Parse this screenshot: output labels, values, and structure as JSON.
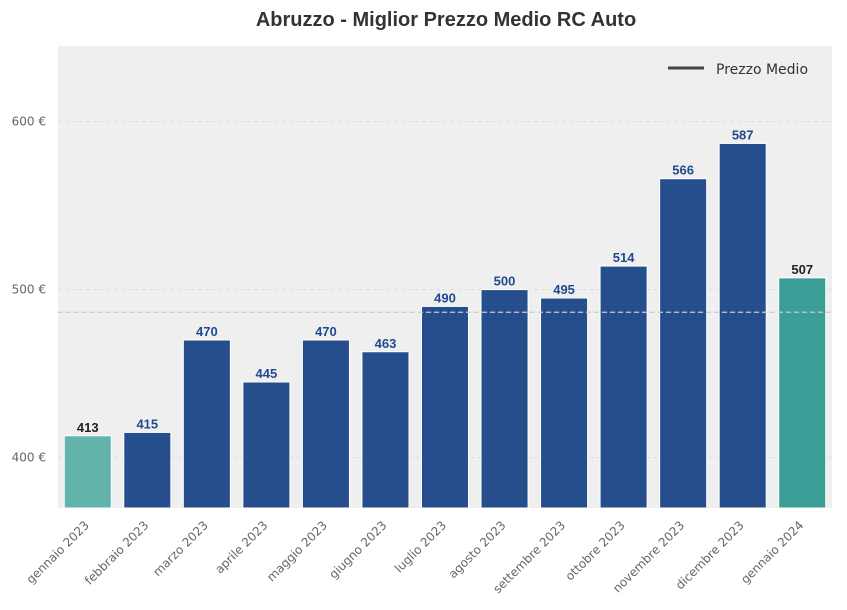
{
  "chart_data": {
    "type": "bar",
    "title": "Abruzzo - Miglior Prezzo Medio RC Auto",
    "xlabel": "",
    "ylabel": "",
    "categories": [
      "gennaio 2023",
      "febbraio 2023",
      "marzo 2023",
      "aprile 2023",
      "maggio 2023",
      "giugno 2023",
      "luglio 2023",
      "agosto 2023",
      "settembre 2023",
      "ottobre 2023",
      "novembre 2023",
      "dicembre 2023",
      "gennaio 2024"
    ],
    "values": [
      413,
      415,
      470,
      445,
      470,
      463,
      490,
      500,
      495,
      514,
      566,
      587,
      507
    ],
    "bar_colors": [
      "#63b3ad",
      "#264d8c",
      "#264d8c",
      "#264d8c",
      "#264d8c",
      "#264d8c",
      "#264d8c",
      "#264d8c",
      "#264d8c",
      "#264d8c",
      "#264d8c",
      "#264d8c",
      "#3a9e97"
    ],
    "label_colors": [
      "#222222",
      "#1f4a8f",
      "#1f4a8f",
      "#1f4a8f",
      "#1f4a8f",
      "#1f4a8f",
      "#1f4a8f",
      "#1f4a8f",
      "#1f4a8f",
      "#1f4a8f",
      "#1f4a8f",
      "#1f4a8f",
      "#222222"
    ],
    "ylim": [
      370,
      645
    ],
    "yticks": [
      400,
      500,
      600
    ],
    "ytick_labels": [
      "400 €",
      "500 €",
      "600 €"
    ],
    "average_line": {
      "name": "Prezzo Medio",
      "value": 486.5,
      "color": "#444444"
    },
    "legend": {
      "position": "top-right",
      "label": "Prezzo Medio"
    },
    "grid": true,
    "colors": {
      "background": "#efefef",
      "grid": "#dddddd"
    }
  }
}
